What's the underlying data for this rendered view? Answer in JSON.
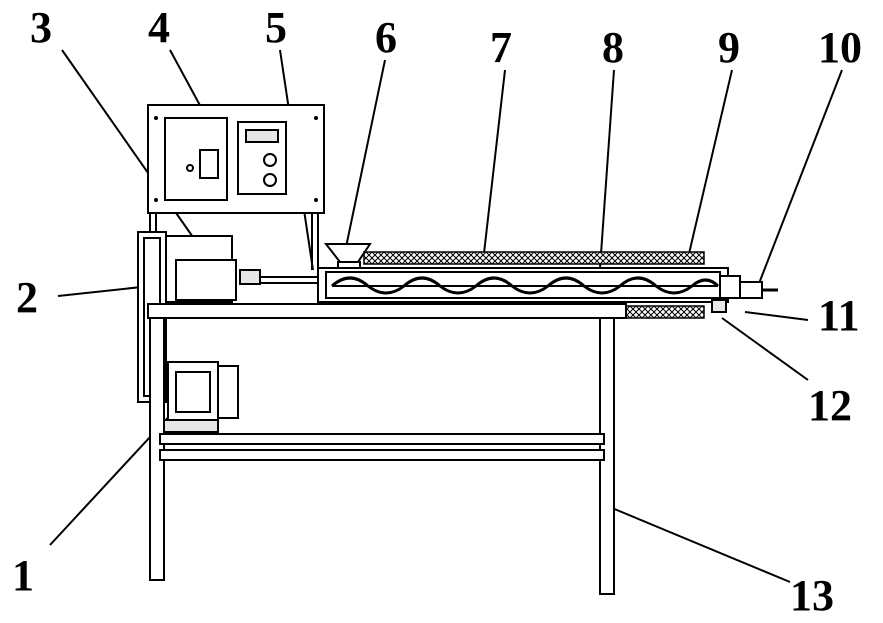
{
  "labels": [
    {
      "id": "label-1",
      "text": "1"
    },
    {
      "id": "label-2",
      "text": "2"
    },
    {
      "id": "label-3",
      "text": "3"
    },
    {
      "id": "label-4",
      "text": "4"
    },
    {
      "id": "label-5",
      "text": "5"
    },
    {
      "id": "label-6",
      "text": "6"
    },
    {
      "id": "label-7",
      "text": "7"
    },
    {
      "id": "label-8",
      "text": "8"
    },
    {
      "id": "label-9",
      "text": "9"
    },
    {
      "id": "label-10",
      "text": "10"
    },
    {
      "id": "label-11",
      "text": "11"
    },
    {
      "id": "label-12",
      "text": "12"
    },
    {
      "id": "label-13",
      "text": "13"
    }
  ]
}
